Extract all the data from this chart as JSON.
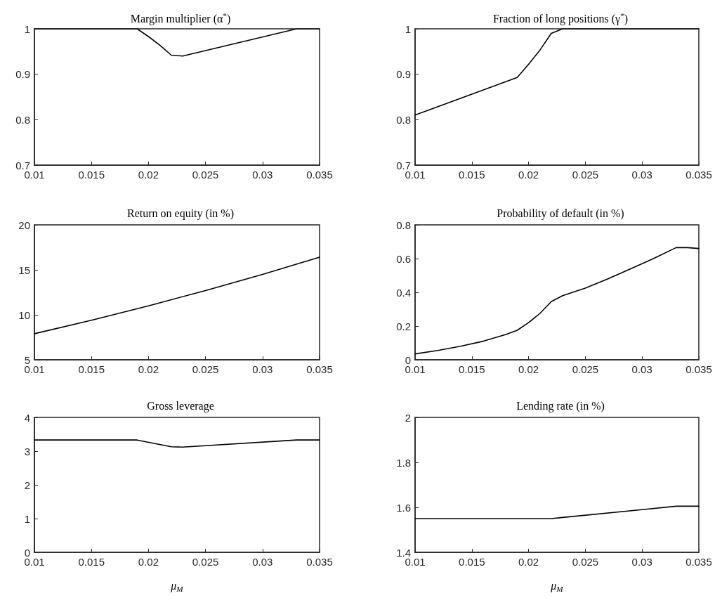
{
  "chart_data": [
    {
      "type": "line",
      "title": "Margin multiplier (α$^{*}$)",
      "x": [
        0.01,
        0.019,
        0.02,
        0.021,
        0.022,
        0.023,
        0.033,
        0.035
      ],
      "values": [
        1,
        1,
        0.983,
        0.964,
        0.942,
        0.94,
        1,
        1
      ],
      "color": "#000000",
      "xlim": [
        0.01,
        0.035
      ],
      "ylim": [
        0.7,
        1
      ],
      "xticks": [
        0.01,
        0.015,
        0.02,
        0.025,
        0.03,
        0.035
      ],
      "yticks": [
        0.7,
        0.8,
        0.9,
        1
      ],
      "line_style": "solid"
    },
    {
      "type": "line",
      "title": "Fraction of long positions (γ$^{*}$)",
      "x": [
        0.01,
        0.019,
        0.02,
        0.021,
        0.022,
        0.023,
        0.035
      ],
      "values": [
        0.81,
        0.893,
        0.922,
        0.953,
        0.99,
        1,
        1
      ],
      "color": "#000000",
      "xlim": [
        0.01,
        0.035
      ],
      "ylim": [
        0.7,
        1
      ],
      "xticks": [
        0.01,
        0.015,
        0.02,
        0.025,
        0.03,
        0.035
      ],
      "yticks": [
        0.7,
        0.8,
        0.9,
        1
      ],
      "line_style": "solid"
    },
    {
      "type": "line",
      "title": "Return on equity (in %)",
      "x": [
        0.01,
        0.015,
        0.02,
        0.025,
        0.03,
        0.035
      ],
      "values": [
        7.9,
        9.4,
        11.0,
        12.7,
        14.5,
        16.4
      ],
      "color": "#000000",
      "xlim": [
        0.01,
        0.035
      ],
      "ylim": [
        5,
        20
      ],
      "xticks": [
        0.01,
        0.015,
        0.02,
        0.025,
        0.03,
        0.035
      ],
      "yticks": [
        5,
        10,
        15,
        20
      ],
      "line_style": "solid"
    },
    {
      "type": "line",
      "title": "Probability of default (in %)",
      "x": [
        0.01,
        0.012,
        0.014,
        0.016,
        0.018,
        0.019,
        0.02,
        0.021,
        0.022,
        0.023,
        0.025,
        0.027,
        0.029,
        0.031,
        0.033,
        0.034,
        0.035
      ],
      "values": [
        0.035,
        0.055,
        0.08,
        0.11,
        0.15,
        0.175,
        0.22,
        0.275,
        0.345,
        0.38,
        0.425,
        0.48,
        0.54,
        0.6,
        0.665,
        0.665,
        0.66
      ],
      "color": "#000000",
      "xlim": [
        0.01,
        0.035
      ],
      "ylim": [
        0,
        0.8
      ],
      "xticks": [
        0.01,
        0.015,
        0.02,
        0.025,
        0.03,
        0.035
      ],
      "yticks": [
        0,
        0.2,
        0.4,
        0.6,
        0.8
      ],
      "line_style": "solid"
    },
    {
      "type": "line",
      "title": "Gross leverage",
      "xlabel": "μ$_{M}$",
      "x": [
        0.01,
        0.019,
        0.022,
        0.023,
        0.033,
        0.035
      ],
      "values": [
        3.33,
        3.33,
        3.13,
        3.12,
        3.33,
        3.33
      ],
      "color": "#000000",
      "xlim": [
        0.01,
        0.035
      ],
      "ylim": [
        0,
        4
      ],
      "xticks": [
        0.01,
        0.015,
        0.02,
        0.025,
        0.03,
        0.035
      ],
      "yticks": [
        0,
        1,
        2,
        3,
        4
      ],
      "line_style": "solid"
    },
    {
      "type": "line",
      "title": "Lending rate (in %)",
      "xlabel": "μ$_{M}$",
      "x": [
        0.01,
        0.022,
        0.023,
        0.03,
        0.033,
        0.035
      ],
      "values": [
        1.55,
        1.55,
        1.555,
        1.59,
        1.605,
        1.605
      ],
      "color": "#000000",
      "xlim": [
        0.01,
        0.035
      ],
      "ylim": [
        1.4,
        2
      ],
      "xticks": [
        0.01,
        0.015,
        0.02,
        0.025,
        0.03,
        0.035
      ],
      "yticks": [
        1.4,
        1.6,
        1.8,
        2
      ],
      "line_style": "solid"
    }
  ]
}
